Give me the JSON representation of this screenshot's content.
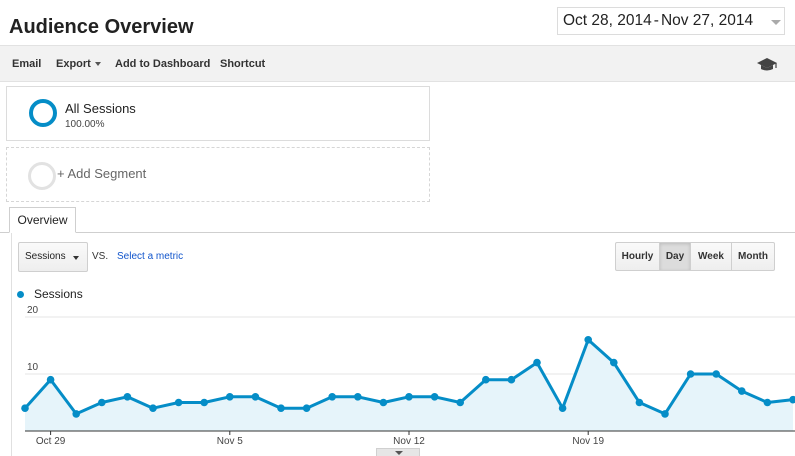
{
  "header": {
    "title": "Audience Overview"
  },
  "date_range": {
    "start": "Oct 28, 2014",
    "separator": "-",
    "end": "Nov 27, 2014"
  },
  "toolbar": {
    "email": "Email",
    "export": "Export",
    "add_to_dashboard": "Add to Dashboard",
    "shortcut": "Shortcut",
    "help_icon": "graduation-cap-icon"
  },
  "segments": {
    "primary": {
      "name": "All Sessions",
      "percent": "100.00%"
    },
    "add_label": "+ Add Segment"
  },
  "tabs": {
    "overview": "Overview"
  },
  "controls": {
    "metric": "Sessions",
    "vs": "VS.",
    "select_metric": "Select a metric",
    "granularity": [
      "Hourly",
      "Day",
      "Week",
      "Month"
    ],
    "granularity_selected": "Day"
  },
  "colors": {
    "series": "#058dc7",
    "area": "#e6f4fa",
    "link": "#1155cc"
  },
  "chart_data": {
    "type": "area",
    "legend": "Sessions",
    "y_ticks": [
      "20",
      "10"
    ],
    "ylim": [
      0,
      20
    ],
    "x_labels": [
      {
        "index": 1,
        "label": "Oct 29"
      },
      {
        "index": 8,
        "label": "Nov 5"
      },
      {
        "index": 15,
        "label": "Nov 12"
      },
      {
        "index": 22,
        "label": "Nov 19"
      }
    ],
    "values": [
      4,
      9,
      3,
      5,
      6,
      4,
      5,
      5,
      6,
      6,
      4,
      4,
      6,
      6,
      5,
      6,
      6,
      5,
      9,
      9,
      12,
      4,
      16,
      12,
      5,
      3,
      10,
      10,
      7,
      5,
      5.5
    ],
    "grid": true
  }
}
